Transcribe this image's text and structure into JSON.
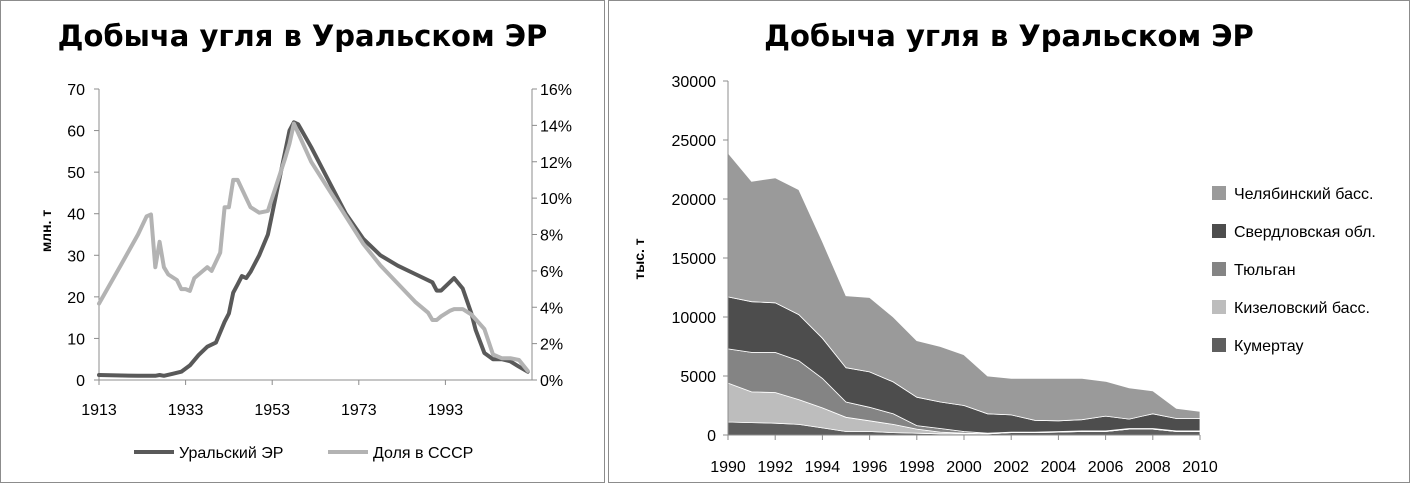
{
  "left_chart": {
    "title": "Добыча угля в Уральском ЭР",
    "ylabel": "млн. т",
    "legend": [
      "Уральский ЭР",
      "Доля в СССР"
    ]
  },
  "right_chart": {
    "title": "Добыча угля в Уральском ЭР",
    "ylabel": "тыс. т",
    "legend": [
      "Челябинский басс.",
      "Свердловская обл.",
      "Тюльган",
      "Кизеловский басс.",
      "Кумертау"
    ]
  },
  "colors": {
    "ural": "#595959",
    "share": "#b3b3b3",
    "chelyabinsk": "#9a9a9a",
    "sverdlovsk": "#4d4d4d",
    "tyulgan": "#848484",
    "kizel": "#bdbdbd",
    "kumertau": "#5e5e5e"
  },
  "chart_data": [
    {
      "type": "line",
      "title": "Добыча угля в Уральском ЭР",
      "ylabel": "млн. т",
      "xlim": [
        1913,
        2013
      ],
      "ylim": [
        0,
        70
      ],
      "y2lim": [
        0,
        16
      ],
      "x_ticks": [
        1913,
        1933,
        1953,
        1973,
        1993
      ],
      "y_ticks": [
        0,
        10,
        20,
        30,
        40,
        50,
        60,
        70
      ],
      "y2_ticks": [
        "0%",
        "2%",
        "4%",
        "6%",
        "8%",
        "10%",
        "12%",
        "14%",
        "16%"
      ],
      "grid": false,
      "legend_position": "bottom",
      "series": [
        {
          "name": "Уральский ЭР",
          "axis": "left",
          "x": [
            1913,
            1917,
            1922,
            1926,
            1927,
            1928,
            1930,
            1932,
            1934,
            1936,
            1938,
            1940,
            1942,
            1943,
            1944,
            1945,
            1946,
            1947,
            1948,
            1950,
            1952,
            1954,
            1956,
            1957,
            1958,
            1959,
            1962,
            1966,
            1970,
            1974,
            1978,
            1982,
            1986,
            1990,
            1991,
            1992,
            1994,
            1995,
            1997,
            1999,
            2000,
            2002,
            2004,
            2006,
            2008,
            2010,
            2012
          ],
          "y": [
            1.2,
            1.1,
            1.0,
            1.0,
            1.2,
            1.0,
            1.5,
            2.0,
            3.5,
            6.0,
            8.0,
            9.0,
            14.0,
            16.0,
            21.0,
            23.0,
            25.0,
            24.5,
            26.0,
            30.0,
            35.0,
            45.0,
            55.0,
            60.0,
            62.0,
            61.5,
            56.0,
            48.0,
            40.0,
            34.0,
            30.0,
            27.5,
            25.5,
            23.5,
            21.5,
            21.5,
            23.5,
            24.5,
            22.0,
            16.0,
            12.0,
            6.5,
            5.0,
            5.0,
            4.5,
            3.2,
            2.0
          ]
        },
        {
          "name": "Доля в СССР",
          "axis": "right",
          "x": [
            1913,
            1918,
            1922,
            1924,
            1925,
            1926,
            1927,
            1928,
            1929,
            1931,
            1932,
            1933,
            1934,
            1935,
            1937,
            1938,
            1939,
            1940,
            1941,
            1942,
            1943,
            1944,
            1945,
            1946,
            1947,
            1948,
            1950,
            1952,
            1956,
            1957,
            1958,
            1962,
            1966,
            1970,
            1974,
            1978,
            1982,
            1986,
            1989,
            1990,
            1991,
            1992,
            1994,
            1995,
            1997,
            1999,
            2002,
            2004,
            2006,
            2008,
            2010,
            2012
          ],
          "y": [
            4.2,
            6.3,
            8.0,
            9.0,
            9.1,
            6.2,
            7.6,
            6.2,
            5.8,
            5.5,
            5.0,
            5.0,
            4.9,
            5.6,
            6.0,
            6.2,
            6.0,
            6.5,
            7.0,
            9.5,
            9.5,
            11.0,
            11.0,
            10.5,
            10.0,
            9.5,
            9.2,
            9.3,
            12.2,
            13.0,
            14.1,
            12.0,
            10.5,
            9.0,
            7.5,
            6.3,
            5.3,
            4.3,
            3.7,
            3.3,
            3.3,
            3.5,
            3.8,
            3.9,
            3.9,
            3.6,
            2.8,
            1.4,
            1.2,
            1.2,
            1.1,
            0.5
          ]
        }
      ]
    },
    {
      "type": "area",
      "stacked": true,
      "title": "Добыча угля в Уральском ЭР",
      "ylabel": "тыс. т",
      "x": [
        1990,
        1991,
        1992,
        1993,
        1994,
        1995,
        1996,
        1997,
        1998,
        1999,
        2000,
        2001,
        2002,
        2003,
        2004,
        2005,
        2006,
        2007,
        2008,
        2009,
        2010
      ],
      "x_ticks": [
        1990,
        1992,
        1994,
        1996,
        1998,
        2000,
        2002,
        2004,
        2006,
        2008,
        2010
      ],
      "ylim": [
        0,
        30000
      ],
      "y_ticks": [
        0,
        5000,
        10000,
        15000,
        20000,
        25000,
        30000
      ],
      "grid": false,
      "legend_position": "right",
      "series": [
        {
          "name": "Кумертау",
          "values": [
            1100,
            1050,
            1000,
            900,
            600,
            300,
            300,
            200,
            150,
            100,
            100,
            100,
            200,
            200,
            250,
            300,
            300,
            500,
            500,
            300,
            300
          ]
        },
        {
          "name": "Кизеловский басс.",
          "values": [
            3300,
            2600,
            2600,
            2100,
            1700,
            1200,
            900,
            700,
            350,
            150,
            50,
            0,
            0,
            0,
            0,
            0,
            0,
            0,
            0,
            0,
            0
          ]
        },
        {
          "name": "Тюльган",
          "values": [
            2900,
            3350,
            3400,
            3300,
            2500,
            1300,
            1150,
            900,
            300,
            300,
            150,
            50,
            50,
            50,
            50,
            50,
            50,
            50,
            50,
            50,
            50
          ]
        },
        {
          "name": "Свердловская обл.",
          "values": [
            4400,
            4300,
            4200,
            3900,
            3400,
            2900,
            3000,
            2700,
            2400,
            2250,
            2200,
            1650,
            1450,
            1000,
            900,
            950,
            1250,
            800,
            1250,
            1050,
            1050
          ]
        },
        {
          "name": "Челябинский басс.",
          "values": [
            12200,
            10200,
            10600,
            10600,
            8200,
            6100,
            6300,
            5500,
            4800,
            4700,
            4300,
            3200,
            3100,
            3550,
            3600,
            3500,
            2950,
            2650,
            1950,
            850,
            600
          ]
        }
      ]
    }
  ]
}
